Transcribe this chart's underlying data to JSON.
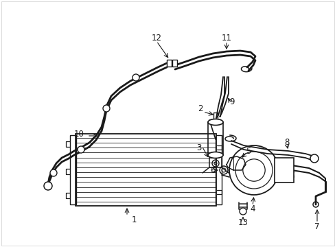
{
  "background_color": "#ffffff",
  "line_color": "#1a1a1a",
  "figsize": [
    4.89,
    3.6
  ],
  "dpi": 100,
  "border_color": "#cccccc"
}
